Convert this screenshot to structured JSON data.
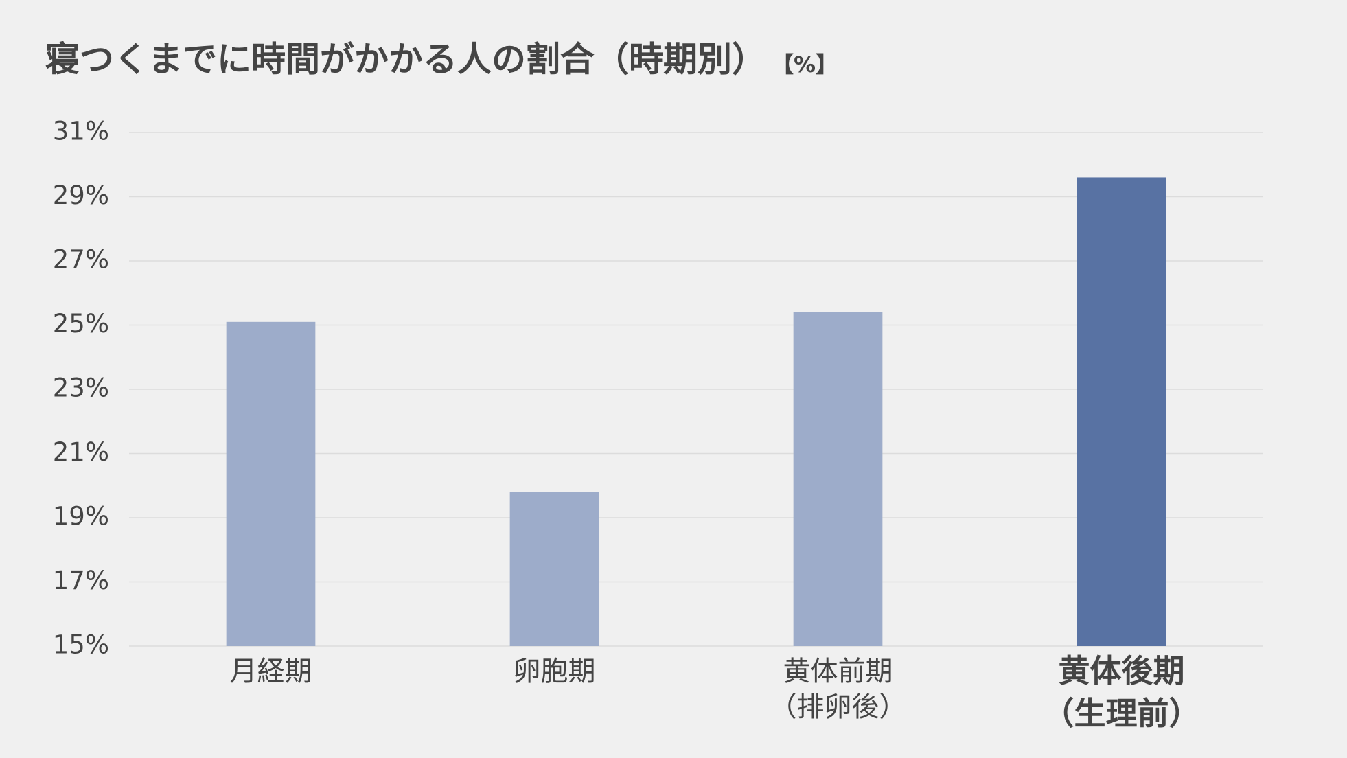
{
  "chart_data": {
    "type": "bar",
    "title": "寝つくまでに時間がかかる人の割合（時期別）",
    "unit_label": "【%】",
    "categories": [
      "月経期",
      "卵胞期",
      "黄体前期\n（排卵後）",
      "黄体後期\n（生理前）"
    ],
    "values": [
      25.1,
      19.8,
      25.4,
      29.6
    ],
    "colors": [
      "#9dacca",
      "#9dacca",
      "#9dacca",
      "#5872a3"
    ],
    "category_label_colors": [
      "#444444",
      "#444444",
      "#444444",
      "#4a6296"
    ],
    "ylim": [
      15,
      31
    ],
    "yticks": [
      {
        "value": 15,
        "label": "15%"
      },
      {
        "value": 17,
        "label": "17%"
      },
      {
        "value": 19,
        "label": "19%"
      },
      {
        "value": 21,
        "label": "21%"
      },
      {
        "value": 23,
        "label": "23%"
      },
      {
        "value": 25,
        "label": "25%"
      },
      {
        "value": 27,
        "label": "27%"
      },
      {
        "value": 29,
        "label": "29%"
      },
      {
        "value": 31,
        "label": "31%"
      }
    ],
    "grid": true
  }
}
